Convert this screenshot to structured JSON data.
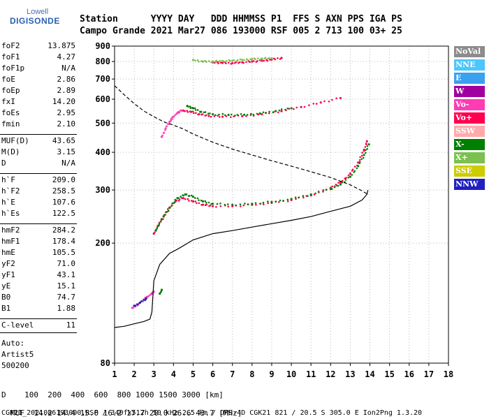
{
  "logo": {
    "brand": "Lowell",
    "product": "DIGISONDE"
  },
  "header": {
    "row1": "Station      YYYY DAY   DDD HHMMSS P1  FFS S AXN PPS IGA PS",
    "row2": "Campo Grande 2021 Mar27 086 193000 RSF 005 2 713 100 03+ 25"
  },
  "params_group1": [
    {
      "name": "foF2",
      "value": "13.875"
    },
    {
      "name": "foF1",
      "value": "4.27"
    },
    {
      "name": "foF1p",
      "value": "N/A"
    },
    {
      "name": "foE",
      "value": "2.86"
    },
    {
      "name": "foEp",
      "value": "2.89"
    },
    {
      "name": "fxI",
      "value": "14.20"
    },
    {
      "name": "foEs",
      "value": "2.95"
    },
    {
      "name": "fmin",
      "value": "2.10"
    }
  ],
  "params_group2": [
    {
      "name": "MUF(D)",
      "value": "43.65"
    },
    {
      "name": "M(D)",
      "value": "3.15"
    },
    {
      "name": "D",
      "value": "N/A"
    }
  ],
  "params_group3": [
    {
      "name": "h`F",
      "value": "209.0"
    },
    {
      "name": "h`F2",
      "value": "258.5"
    },
    {
      "name": "h`E",
      "value": "107.6"
    },
    {
      "name": "h`Es",
      "value": "122.5"
    }
  ],
  "params_group4": [
    {
      "name": "hmF2",
      "value": "284.2"
    },
    {
      "name": "hmF1",
      "value": "178.4"
    },
    {
      "name": "hmE",
      "value": "105.5"
    },
    {
      "name": "yF2",
      "value": "71.0"
    },
    {
      "name": "yF1",
      "value": "43.1"
    },
    {
      "name": "yE",
      "value": "15.1"
    },
    {
      "name": "B0",
      "value": "74.7"
    },
    {
      "name": "B1",
      "value": "1.88"
    }
  ],
  "params_group5": [
    {
      "name": "C-level",
      "value": "11"
    }
  ],
  "autoscale": {
    "line1": "Auto:",
    "line2": "Artist5",
    "line3": "500200"
  },
  "legend": [
    {
      "label": "NoVal",
      "color": "#8c8c8c"
    },
    {
      "label": "NNE",
      "color": "#4cc6ff"
    },
    {
      "label": "E",
      "color": "#3aa0f0"
    },
    {
      "label": "W",
      "color": "#a000a0"
    },
    {
      "label": "Vo-",
      "color": "#ff3cb4"
    },
    {
      "label": "Vo+",
      "color": "#ff0050"
    },
    {
      "label": "SSW",
      "color": "#ffaaaa"
    },
    {
      "label": "X-",
      "color": "#008000"
    },
    {
      "label": "X+",
      "color": "#7cc050"
    },
    {
      "label": "SSE",
      "color": "#cccc00"
    },
    {
      "label": "NNW",
      "color": "#2020c0"
    }
  ],
  "footer": {
    "d_row": "D    100  200  400  600  800 1000 1500 3000 [km]",
    "muf_row_label": "MUF",
    "muf_values": [
      "14.2",
      "14.4",
      "15.0",
      "16.2",
      "17.7",
      "20.0",
      "26.6",
      "43.7"
    ],
    "muf_unit": "[MHz]",
    "info_row": "CGK21_2021086193000.RSF / 340fx512h 50 kHz 2.5 km / DPS-4D CGK21 821 / 20.5 S 305.0 E Ion2Png 1.3.20"
  },
  "chart_data": {
    "type": "scatter",
    "x_ticks": [
      1,
      2,
      3,
      4,
      5,
      6,
      7,
      8,
      9,
      10,
      11,
      12,
      13,
      14,
      15,
      16,
      17,
      18
    ],
    "y_ticks": [
      80,
      200,
      300,
      400,
      500,
      600,
      700,
      800,
      900
    ],
    "xlim": [
      1,
      18
    ],
    "ylim": [
      80,
      900
    ],
    "y_scale": "log",
    "grid": true,
    "legend_position": "right",
    "series": [
      {
        "color": "#ff0050",
        "mark": "dots",
        "points": [
          [
            3.0,
            215
          ],
          [
            3.2,
            228
          ],
          [
            3.5,
            245
          ],
          [
            3.8,
            262
          ],
          [
            4.1,
            275
          ],
          [
            4.5,
            282
          ],
          [
            5.0,
            275
          ],
          [
            5.5,
            268
          ],
          [
            6.0,
            265
          ],
          [
            7.0,
            265
          ],
          [
            8.0,
            268
          ],
          [
            9.0,
            272
          ],
          [
            10.0,
            278
          ],
          [
            11.0,
            288
          ],
          [
            12.0,
            305
          ],
          [
            12.5,
            318
          ],
          [
            13.0,
            340
          ],
          [
            13.4,
            370
          ],
          [
            13.7,
            405
          ],
          [
            13.85,
            435
          ]
        ]
      },
      {
        "color": "#008000",
        "mark": "dots",
        "points": [
          [
            3.1,
            220
          ],
          [
            3.4,
            240
          ],
          [
            3.8,
            262
          ],
          [
            4.2,
            282
          ],
          [
            4.6,
            290
          ],
          [
            5.0,
            285
          ],
          [
            5.5,
            275
          ],
          [
            6.0,
            270
          ],
          [
            7.0,
            268
          ],
          [
            8.0,
            270
          ],
          [
            9.0,
            274
          ],
          [
            10.0,
            280
          ],
          [
            11.0,
            290
          ],
          [
            12.0,
            302
          ],
          [
            12.5,
            313
          ],
          [
            13.0,
            332
          ],
          [
            13.4,
            360
          ],
          [
            13.7,
            392
          ],
          [
            13.95,
            425
          ]
        ]
      },
      {
        "color": "#ff0050",
        "mark": "dots",
        "points": [
          [
            4.5,
            550
          ],
          [
            4.9,
            545
          ],
          [
            5.3,
            535
          ],
          [
            5.8,
            528
          ],
          [
            6.5,
            525
          ],
          [
            7.5,
            527
          ],
          [
            8.5,
            535
          ],
          [
            9.5,
            548
          ],
          [
            10.5,
            565
          ],
          [
            11.5,
            585
          ],
          [
            12.5,
            605
          ]
        ]
      },
      {
        "color": "#008000",
        "mark": "dots",
        "points": [
          [
            4.7,
            570
          ],
          [
            5.0,
            560
          ],
          [
            5.4,
            545
          ],
          [
            6.0,
            535
          ],
          [
            6.8,
            532
          ],
          [
            7.6,
            533
          ],
          [
            8.4,
            538
          ],
          [
            9.2,
            548
          ],
          [
            10.0,
            560
          ]
        ]
      },
      {
        "color": "#ff3cb4",
        "mark": "dots",
        "points": [
          [
            3.4,
            450
          ],
          [
            3.6,
            480
          ],
          [
            3.8,
            505
          ],
          [
            4.0,
            525
          ],
          [
            4.2,
            540
          ],
          [
            4.4,
            550
          ]
        ]
      },
      {
        "color": "#ff0050",
        "mark": "dots",
        "points": [
          [
            6.0,
            795
          ],
          [
            6.5,
            792
          ],
          [
            7.0,
            790
          ],
          [
            7.5,
            795
          ],
          [
            8.0,
            800
          ],
          [
            8.5,
            805
          ],
          [
            9.0,
            812
          ],
          [
            9.5,
            822
          ]
        ]
      },
      {
        "color": "#7cc050",
        "mark": "dots",
        "points": [
          [
            5.0,
            810
          ],
          [
            5.5,
            800
          ],
          [
            6.0,
            800
          ],
          [
            6.5,
            803
          ],
          [
            7.0,
            805
          ],
          [
            7.5,
            810
          ],
          [
            8.0,
            815
          ],
          [
            8.5,
            818
          ],
          [
            9.0,
            820
          ]
        ]
      },
      {
        "color": "#ff3cb4",
        "mark": "dots",
        "points": [
          [
            1.9,
            122
          ],
          [
            2.2,
            125
          ],
          [
            2.5,
            130
          ],
          [
            2.7,
            133
          ],
          [
            2.9,
            136
          ],
          [
            3.0,
            138
          ]
        ]
      },
      {
        "color": "#2020c0",
        "mark": "dots",
        "points": [
          [
            2.0,
            124
          ],
          [
            2.3,
            127
          ],
          [
            2.6,
            131
          ]
        ]
      },
      {
        "color": "#008000",
        "mark": "dots",
        "points": [
          [
            3.3,
            136
          ],
          [
            3.4,
            140
          ]
        ]
      },
      {
        "color": "#000000",
        "mark": "line",
        "name": "profile",
        "points": [
          [
            1.0,
            105
          ],
          [
            1.5,
            106
          ],
          [
            2.0,
            108
          ],
          [
            2.5,
            110
          ],
          [
            2.8,
            112
          ],
          [
            2.9,
            118
          ],
          [
            3.0,
            150
          ],
          [
            3.3,
            170
          ],
          [
            3.8,
            185
          ],
          [
            4.27,
            192
          ],
          [
            5.0,
            205
          ],
          [
            6.0,
            215
          ],
          [
            7.0,
            220
          ],
          [
            8.0,
            226
          ],
          [
            9.0,
            232
          ],
          [
            10.0,
            238
          ],
          [
            11.0,
            245
          ],
          [
            12.0,
            255
          ],
          [
            13.0,
            265
          ],
          [
            13.6,
            278
          ],
          [
            13.85,
            290
          ],
          [
            13.9,
            300
          ]
        ]
      },
      {
        "color": "#000000",
        "mark": "dashed",
        "name": "muf",
        "points": [
          [
            1.0,
            665
          ],
          [
            1.5,
            620
          ],
          [
            2.0,
            580
          ],
          [
            2.5,
            548
          ],
          [
            3.0,
            525
          ],
          [
            3.5,
            505
          ],
          [
            4.0,
            492
          ],
          [
            4.5,
            478
          ],
          [
            5.0,
            460
          ],
          [
            6.0,
            432
          ],
          [
            7.0,
            410
          ],
          [
            8.0,
            392
          ],
          [
            9.0,
            375
          ],
          [
            10.0,
            360
          ],
          [
            11.0,
            345
          ],
          [
            12.0,
            330
          ],
          [
            13.0,
            312
          ],
          [
            13.6,
            298
          ],
          [
            13.9,
            290
          ]
        ]
      }
    ]
  }
}
